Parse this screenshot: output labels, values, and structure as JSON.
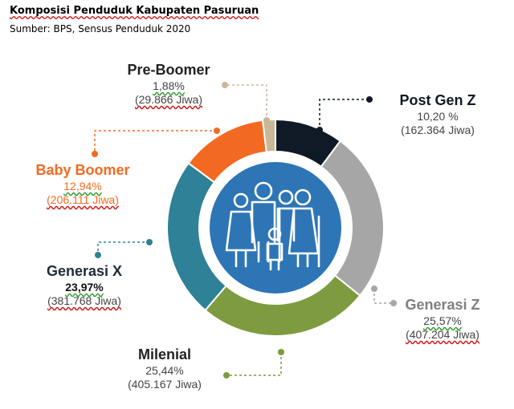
{
  "title": "Komposisi Penduduk Kabupaten Pasuruan",
  "source": "Sumber: BPS, Sensus Penduduk 2020",
  "chart_data": {
    "type": "pie",
    "subtype": "donut",
    "series": [
      {
        "name": "Post Gen Z",
        "value": 10.2,
        "pct_label": "10,20 %",
        "abs_label": "(162.364 Jiwa)",
        "color": "#0f1a26"
      },
      {
        "name": "Generasi Z",
        "value": 25.57,
        "pct_label": "25,57%",
        "abs_label": "(407.204 Jiwa)",
        "color": "#a6a6a6"
      },
      {
        "name": "Milenial",
        "value": 25.44,
        "pct_label": "25,44%",
        "abs_label": "(405.167 Jiwa)",
        "color": "#7e9b3f"
      },
      {
        "name": "Generasi X",
        "value": 23.97,
        "pct_label": "23,97%",
        "abs_label": "(381.768 Jiwa)",
        "color": "#2e8196"
      },
      {
        "name": "Baby Boomer",
        "value": 12.94,
        "pct_label": "12,94%",
        "abs_label": "(206.111 Jiwa)",
        "color": "#f26a21"
      },
      {
        "name": "Pre-Boomer",
        "value": 1.88,
        "pct_label": "1,88%",
        "abs_label": "(29.866 Jiwa)",
        "color": "#c9b797"
      }
    ],
    "center_icon": "family-generations-icon",
    "center_color": "#2e75b6"
  }
}
